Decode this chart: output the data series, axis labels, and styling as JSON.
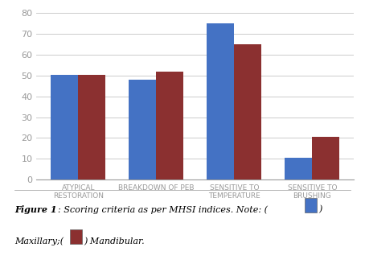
{
  "categories": [
    "ATYPICAL\nRESTORATION",
    "BREAKDOWN OF PEB",
    "SENSITIVE TO\nTEMPERATURE",
    "SENSITIVE TO\nBRUSHING"
  ],
  "maxillary": [
    50.5,
    48,
    75,
    10.5
  ],
  "mandibular": [
    50.5,
    52,
    65,
    20.5
  ],
  "bar_color_blue": "#4472C4",
  "bar_color_red": "#8B3030",
  "ylim": [
    0,
    80
  ],
  "yticks": [
    0,
    10,
    20,
    30,
    40,
    50,
    60,
    70,
    80
  ],
  "bar_width": 0.35,
  "background_color": "#ffffff",
  "grid_color": "#cccccc",
  "tick_color": "#999999",
  "label_fontsize": 6.5,
  "ytick_fontsize": 8,
  "caption_fontsize": 8
}
